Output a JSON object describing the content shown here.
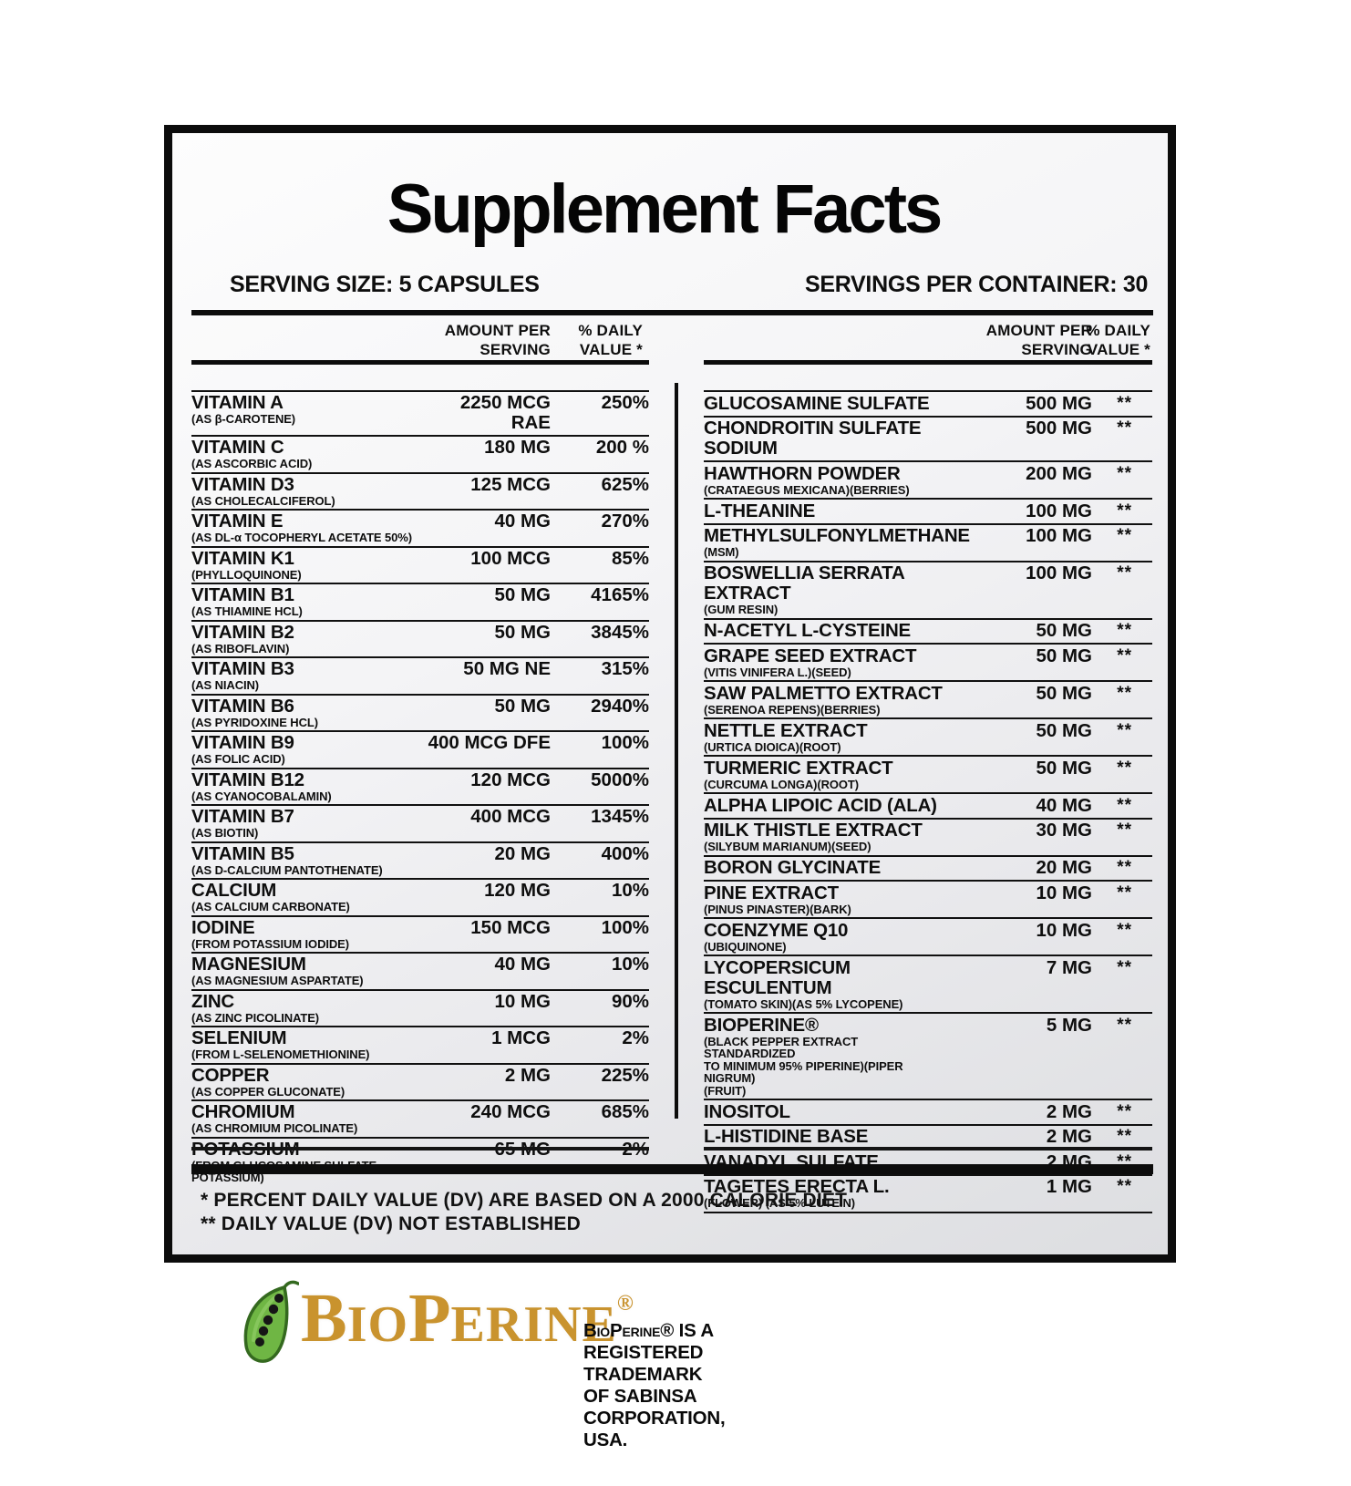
{
  "label": {
    "title": "Supplement Facts",
    "serving_size": "SERVING SIZE: 5 CAPSULES",
    "servings_per_container": "SERVINGS PER CONTAINER: 30",
    "col_header": {
      "amount_line1": "AMOUNT PER",
      "amount_line2": "SERVING",
      "dv_line1": "% DAILY",
      "dv_line2": "VALUE *"
    },
    "left_rows": [
      {
        "name": "VITAMIN A",
        "sub": "(AS β-CAROTENE)",
        "amount": "2250 MCG RAE",
        "dv": "250%"
      },
      {
        "name": "VITAMIN C",
        "sub": "(AS ASCORBIC ACID)",
        "amount": "180 MG",
        "dv": "200 %"
      },
      {
        "name": "VITAMIN D3",
        "sub": "(AS CHOLECALCIFEROL)",
        "amount": "125 MCG",
        "dv": "625%"
      },
      {
        "name": "VITAMIN E",
        "sub": "(AS DL-α TOCOPHERYL ACETATE 50%)",
        "amount": "40 MG",
        "dv": "270%"
      },
      {
        "name": "VITAMIN K1",
        "sub": "(PHYLLOQUINONE)",
        "amount": "100 MCG",
        "dv": "85%"
      },
      {
        "name": "VITAMIN B1",
        "sub": "(AS THIAMINE HCL)",
        "amount": "50 MG",
        "dv": "4165%"
      },
      {
        "name": "VITAMIN B2",
        "sub": "(AS RIBOFLAVIN)",
        "amount": "50 MG",
        "dv": "3845%"
      },
      {
        "name": "VITAMIN B3",
        "sub": "(AS NIACIN)",
        "amount": "50 MG NE",
        "dv": "315%"
      },
      {
        "name": "VITAMIN B6",
        "sub": "(AS PYRIDOXINE HCL)",
        "amount": "50 MG",
        "dv": "2940%"
      },
      {
        "name": "VITAMIN B9",
        "sub": "(AS FOLIC ACID)",
        "amount": "400 MCG DFE",
        "dv": "100%"
      },
      {
        "name": "VITAMIN B12",
        "sub": "(AS CYANOCOBALAMIN)",
        "amount": "120 MCG",
        "dv": "5000%"
      },
      {
        "name": "VITAMIN B7",
        "sub": "(AS BIOTIN)",
        "amount": "400 MCG",
        "dv": "1345%"
      },
      {
        "name": "VITAMIN B5",
        "sub": "(AS D-CALCIUM PANTOTHENATE)",
        "amount": "20 MG",
        "dv": "400%"
      },
      {
        "name": "CALCIUM",
        "sub": "(AS CALCIUM CARBONATE)",
        "amount": "120 MG",
        "dv": "10%"
      },
      {
        "name": "IODINE",
        "sub": "(FROM POTASSIUM IODIDE)",
        "amount": "150 MCG",
        "dv": "100%"
      },
      {
        "name": "MAGNESIUM",
        "sub": "(AS MAGNESIUM ASPARTATE)",
        "amount": "40 MG",
        "dv": "10%"
      },
      {
        "name": "ZINC",
        "sub": "(AS ZINC PICOLINATE)",
        "amount": "10 MG",
        "dv": "90%"
      },
      {
        "name": "SELENIUM",
        "sub": "(FROM L-SELENOMETHIONINE)",
        "amount": "1 MCG",
        "dv": "2%"
      },
      {
        "name": "COPPER",
        "sub": "(AS COPPER GLUCONATE)",
        "amount": "2 MG",
        "dv": "225%"
      },
      {
        "name": "CHROMIUM",
        "sub": "(AS CHROMIUM PICOLINATE)",
        "amount": "240 MCG",
        "dv": "685%"
      },
      {
        "name": "POTASSIUM",
        "sub": "(FROM GLUCOSAMINE SULFATE POTASSIUM)",
        "amount": "65 MG",
        "dv": "2%"
      }
    ],
    "right_rows": [
      {
        "name": "GLUCOSAMINE SULFATE",
        "sub": "",
        "amount": "500 MG",
        "dv": "**"
      },
      {
        "name": "CHONDROITIN SULFATE SODIUM",
        "sub": "",
        "amount": "500 MG",
        "dv": "**"
      },
      {
        "name": "HAWTHORN POWDER",
        "sub": "(CRATAEGUS MEXICANA)(BERRIES)",
        "amount": "200 MG",
        "dv": "**"
      },
      {
        "name": "L-THEANINE",
        "sub": "",
        "amount": "100 MG",
        "dv": "**"
      },
      {
        "name": "METHYLSULFONYLMETHANE",
        "sub": "(MSM)",
        "amount": "100 MG",
        "dv": "**"
      },
      {
        "name": "BOSWELLIA SERRATA EXTRACT",
        "sub": "(GUM RESIN)",
        "amount": "100 MG",
        "dv": "**"
      },
      {
        "name": "N-ACETYL L-CYSTEINE",
        "sub": "",
        "amount": "50 MG",
        "dv": "**"
      },
      {
        "name": "GRAPE SEED EXTRACT",
        "sub": "(VITIS VINIFERA L.)(SEED)",
        "amount": "50 MG",
        "dv": "**"
      },
      {
        "name": "SAW PALMETTO EXTRACT",
        "sub": "(SERENOA REPENS)(BERRIES)",
        "amount": "50 MG",
        "dv": "**"
      },
      {
        "name": "NETTLE EXTRACT",
        "sub": "(URTICA DIOICA)(ROOT)",
        "amount": "50 MG",
        "dv": "**"
      },
      {
        "name": "TURMERIC EXTRACT",
        "sub": "(CURCUMA LONGA)(ROOT)",
        "amount": "50 MG",
        "dv": "**"
      },
      {
        "name": "ALPHA LIPOIC ACID (ALA)",
        "sub": "",
        "amount": "40 MG",
        "dv": "**"
      },
      {
        "name": "MILK THISTLE EXTRACT",
        "sub": "(SILYBUM MARIANUM)(SEED)",
        "amount": "30 MG",
        "dv": "**"
      },
      {
        "name": "BORON GLYCINATE",
        "sub": "",
        "amount": "20 MG",
        "dv": "**"
      },
      {
        "name": "PINE EXTRACT",
        "sub": "(PINUS PINASTER)(BARK)",
        "amount": "10 MG",
        "dv": "**"
      },
      {
        "name": "COENZYME Q10",
        "sub": "(UBIQUINONE)",
        "amount": "10 MG",
        "dv": "**"
      },
      {
        "name": "LYCOPERSICUM ESCULENTUM",
        "sub": "(TOMATO SKIN)(AS 5% LYCOPENE)",
        "amount": "7 MG",
        "dv": "**"
      },
      {
        "name": "BIOPERINE®",
        "sub": "(BLACK PEPPER EXTRACT STANDARDIZED\nTO MINIMUM 95% PIPERINE)(PIPER NIGRUM)\n(FRUIT)",
        "amount": "5 MG",
        "dv": "**"
      },
      {
        "name": "INOSITOL",
        "sub": "",
        "amount": "2 MG",
        "dv": "**"
      },
      {
        "name": "L-HISTIDINE BASE",
        "sub": "",
        "amount": "2 MG",
        "dv": "**"
      },
      {
        "name": "VANADYL SULFATE",
        "sub": "",
        "amount": "2 MG",
        "dv": "**"
      },
      {
        "name": "TAGETES ERECTA L.",
        "sub": "(FLOWER) (AS 5% LUTEIN)",
        "amount": "1 MG",
        "dv": "**"
      }
    ],
    "footnotes": [
      "* PERCENT DAILY VALUE (DV) ARE BASED ON A 2000 CALORIE DIET",
      "** DAILY VALUE (DV) NOT ESTABLISHED"
    ]
  },
  "branding": {
    "icon": "pepper-pod-leaf-icon",
    "wordmark_parts": {
      "lead1": "B",
      "rest1": "IO",
      "lead2": "P",
      "rest2": "ERINE"
    },
    "registered": "®",
    "trademark_note": "BioPerine® IS A REGISTERED TRADEMARK OF SABINSA CORPORATION, USA.",
    "colors": {
      "gold": "#C9932E",
      "leaf_green": "#6FB644",
      "leaf_outline": "#34691F",
      "peppercorn": "#161616",
      "rule_black": "#0C0C0C"
    }
  }
}
